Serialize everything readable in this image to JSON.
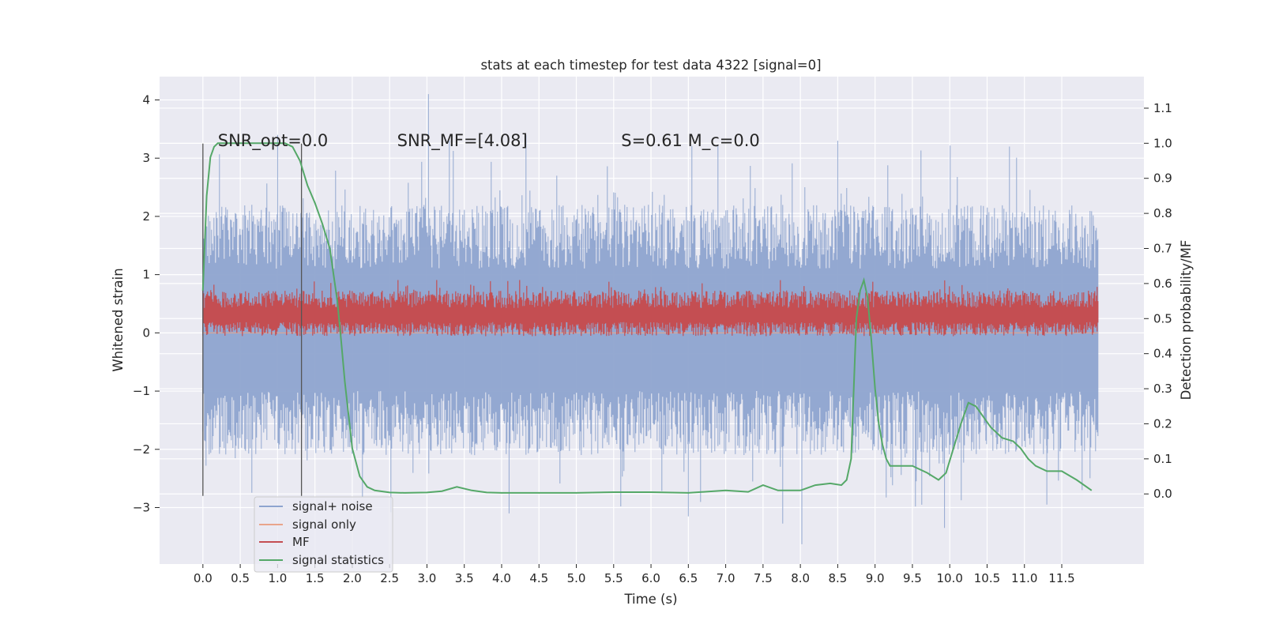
{
  "chart_data": {
    "type": "line",
    "title": "stats at each timestep for test data 4322 [signal=0]",
    "xlabel": "Time (s)",
    "ylabel": "Whitened strain",
    "y2label": "Detection probability/MF",
    "xlim": [
      -0.58,
      12.6
    ],
    "ylim": [
      -3.97,
      4.4
    ],
    "y2lim": [
      -0.2,
      1.19
    ],
    "x_ticks": [
      "0.0",
      "0.5",
      "1.0",
      "1.5",
      "2.0",
      "2.5",
      "3.0",
      "3.5",
      "4.0",
      "4.5",
      "5.0",
      "5.5",
      "6.0",
      "6.5",
      "7.0",
      "7.5",
      "8.0",
      "8.5",
      "9.0",
      "9.5",
      "10.0",
      "10.5",
      "11.0",
      "11.5"
    ],
    "y_ticks": [
      "−3",
      "−2",
      "−1",
      "0",
      "1",
      "2",
      "3",
      "4"
    ],
    "y2_ticks": [
      "0.0",
      "0.1",
      "0.2",
      "0.3",
      "0.4",
      "0.5",
      "0.6",
      "0.7",
      "0.8",
      "0.9",
      "1.0",
      "1.1"
    ],
    "grid": true,
    "legend_position": "lower-left",
    "annotations": [
      {
        "text": "SNR_opt=0.0",
        "x": 0.2,
        "y": 3.3
      },
      {
        "text": "SNR_MF=[4.08]",
        "x": 2.6,
        "y": 3.3
      },
      {
        "text": "S=0.61   M_c=0.0",
        "x": 5.6,
        "y": 3.3
      }
    ],
    "vertical_lines": [
      0.0,
      1.32
    ],
    "vertical_line_range": [
      -2.8,
      3.25
    ],
    "series": [
      {
        "name": "signal+ noise",
        "axis": "left",
        "color": "#8ea4cf",
        "x_range": [
          0.0,
          11.99
        ],
        "envelope": {
          "typical_low": -1.5,
          "typical_high": 1.6,
          "spikes_high": [
            4.1,
            3.4,
            3.3,
            3.3,
            3.2
          ],
          "spikes_low": [
            -3.63,
            -3.35,
            -3.15,
            -3.1,
            -2.95
          ]
        }
      },
      {
        "name": "signal only",
        "axis": "left",
        "color": "#e9a58b",
        "x_range": [
          0.0,
          11.99
        ],
        "values": "constant 0"
      },
      {
        "name": "MF",
        "axis": "right",
        "color": "#c44e52",
        "x_range": [
          0.0,
          11.99
        ],
        "envelope": {
          "typical_low": 0.46,
          "typical_high": 0.56,
          "max": 0.61,
          "min": 0.44
        }
      },
      {
        "name": "signal statistics",
        "axis": "right",
        "color": "#55a868",
        "x": [
          0.0,
          0.05,
          0.1,
          0.15,
          0.2,
          0.3,
          0.4,
          0.5,
          0.6,
          0.7,
          0.8,
          0.9,
          1.0,
          1.1,
          1.2,
          1.3,
          1.4,
          1.5,
          1.6,
          1.7,
          1.8,
          1.85,
          1.9,
          2.0,
          2.1,
          2.2,
          2.3,
          2.5,
          2.7,
          3.0,
          3.2,
          3.4,
          3.6,
          3.8,
          4.0,
          4.5,
          5.0,
          5.5,
          6.0,
          6.5,
          7.0,
          7.3,
          7.5,
          7.7,
          8.0,
          8.2,
          8.4,
          8.55,
          8.62,
          8.68,
          8.75,
          8.8,
          8.85,
          8.9,
          8.95,
          9.0,
          9.05,
          9.1,
          9.15,
          9.2,
          9.3,
          9.5,
          9.7,
          9.85,
          9.95,
          10.05,
          10.15,
          10.25,
          10.35,
          10.45,
          10.55,
          10.7,
          10.85,
          10.95,
          11.05,
          11.15,
          11.3,
          11.5,
          11.7,
          11.9
        ],
        "values": [
          0.58,
          0.85,
          0.96,
          0.99,
          1.0,
          1.0,
          1.0,
          1.0,
          1.0,
          1.0,
          1.0,
          1.0,
          1.0,
          1.0,
          0.99,
          0.95,
          0.88,
          0.83,
          0.77,
          0.7,
          0.55,
          0.44,
          0.32,
          0.13,
          0.05,
          0.02,
          0.01,
          0.004,
          0.003,
          0.004,
          0.008,
          0.02,
          0.01,
          0.004,
          0.003,
          0.003,
          0.003,
          0.005,
          0.005,
          0.003,
          0.01,
          0.006,
          0.025,
          0.01,
          0.01,
          0.025,
          0.03,
          0.025,
          0.04,
          0.1,
          0.5,
          0.58,
          0.61,
          0.56,
          0.44,
          0.3,
          0.2,
          0.14,
          0.1,
          0.08,
          0.08,
          0.08,
          0.06,
          0.04,
          0.06,
          0.13,
          0.2,
          0.26,
          0.25,
          0.22,
          0.19,
          0.16,
          0.15,
          0.13,
          0.1,
          0.08,
          0.065,
          0.065,
          0.04,
          0.01
        ]
      }
    ]
  }
}
